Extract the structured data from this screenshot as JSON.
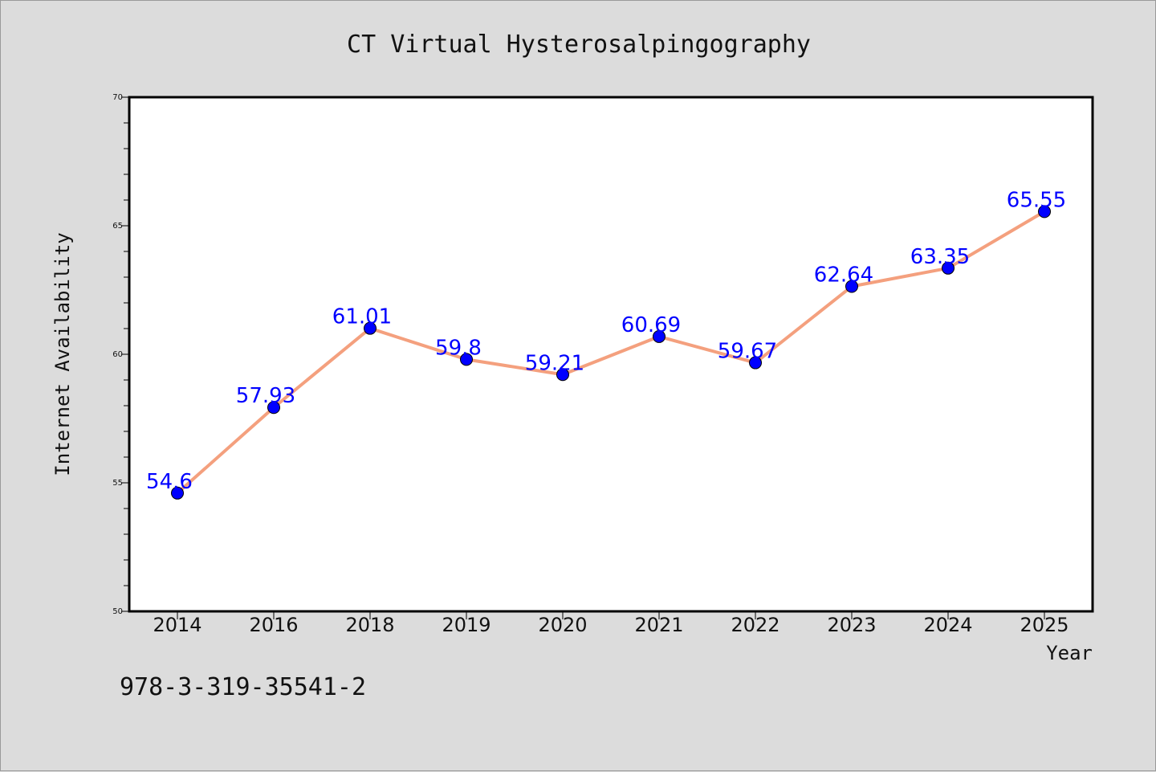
{
  "chart_data": {
    "type": "line",
    "title": "CT Virtual Hysterosalpingography",
    "xlabel": "Year",
    "ylabel": "Internet Availability",
    "categories": [
      "2014",
      "2016",
      "2018",
      "2019",
      "2020",
      "2021",
      "2022",
      "2023",
      "2024",
      "2025"
    ],
    "series": [
      {
        "values": [
          54.6,
          57.93,
          61.01,
          59.8,
          59.21,
          60.69,
          59.67,
          62.64,
          63.35,
          65.55
        ],
        "data_labels": [
          "54.6",
          "57.93",
          "61.01",
          "59.8",
          "59.21",
          "60.69",
          "59.67",
          "62.64",
          "63.35",
          "65.55"
        ],
        "line_color": "#f4a07e",
        "marker_color": "#0000ff"
      }
    ],
    "ylim": [
      50,
      70
    ],
    "yticks": [
      "50",
      "55",
      "60",
      "65",
      "70"
    ],
    "grid": false,
    "legend": "none"
  },
  "footer_text": "978-3-319-35541-2"
}
